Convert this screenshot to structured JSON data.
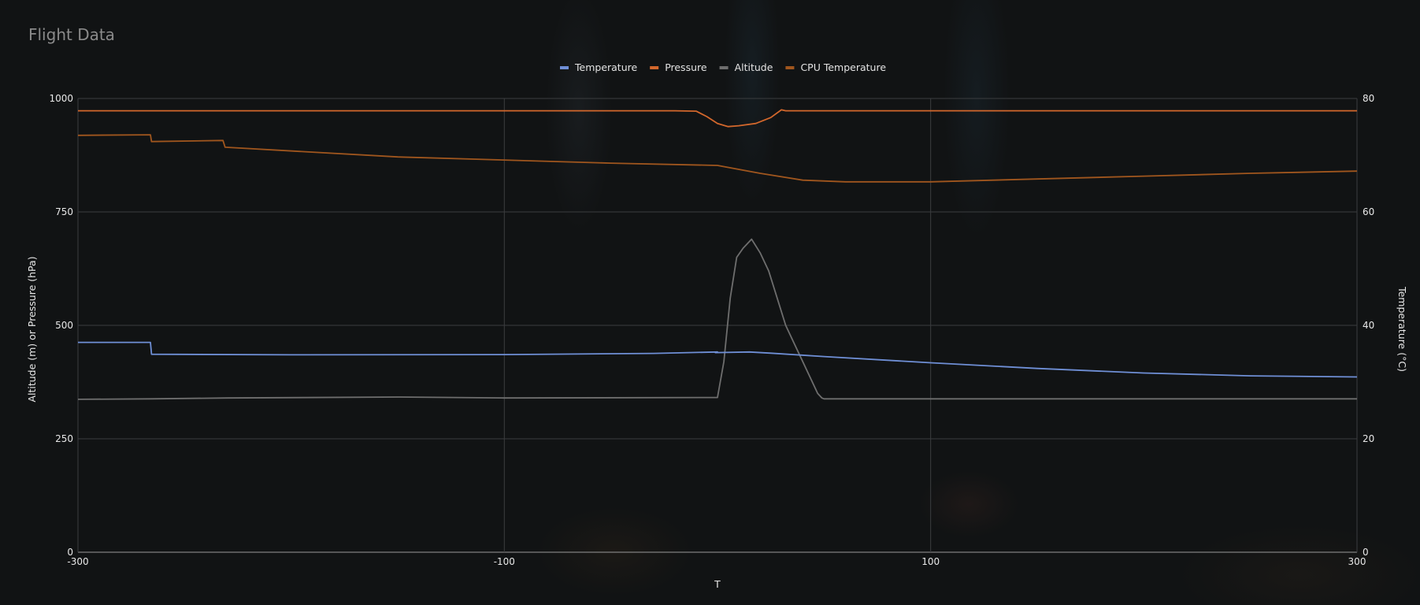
{
  "page": {
    "title": "Flight Data"
  },
  "chart_data": {
    "type": "line",
    "title": "Flight Data",
    "xlabel": "T",
    "ylabel": "Altitude (m) or Pressure (hPa)",
    "y2label": "Temperature (°C)",
    "xlim": [
      -300,
      300
    ],
    "ylim": [
      0,
      1000
    ],
    "y2lim": [
      0,
      80
    ],
    "x_ticks": [
      -300,
      -100,
      100,
      300
    ],
    "y_ticks": [
      0,
      250,
      500,
      750,
      1000
    ],
    "y2_ticks": [
      0,
      20,
      40,
      60,
      80
    ],
    "grid": true,
    "legend_position": "top-center",
    "series": [
      {
        "name": "Temperature",
        "axis": "right",
        "color": "#6f8fd6",
        "points": [
          [
            -300,
            37
          ],
          [
            -266,
            37
          ],
          [
            -265.5,
            34.9
          ],
          [
            -200,
            34.8
          ],
          [
            -100,
            34.85
          ],
          [
            -30,
            35.05
          ],
          [
            0,
            35.3
          ],
          [
            -1,
            35.2
          ],
          [
            15,
            35.3
          ],
          [
            25,
            35.1
          ],
          [
            50,
            34.5
          ],
          [
            100,
            33.4
          ],
          [
            150,
            32.4
          ],
          [
            200,
            31.6
          ],
          [
            250,
            31.1
          ],
          [
            300,
            30.9
          ]
        ]
      },
      {
        "name": "Pressure",
        "axis": "left",
        "color": "#d2672c",
        "points": [
          [
            -300,
            973
          ],
          [
            -20,
            973
          ],
          [
            -10,
            972
          ],
          [
            -5,
            960
          ],
          [
            0,
            945
          ],
          [
            5,
            938
          ],
          [
            10,
            940
          ],
          [
            18,
            945
          ],
          [
            25,
            958
          ],
          [
            30,
            975
          ],
          [
            32,
            973
          ],
          [
            50,
            973
          ],
          [
            150,
            973
          ],
          [
            300,
            973
          ]
        ]
      },
      {
        "name": "Altitude",
        "axis": "left",
        "color": "#6e6e6e",
        "points": [
          [
            -300,
            337
          ],
          [
            -266,
            338
          ],
          [
            -230,
            340
          ],
          [
            -150,
            342
          ],
          [
            -100,
            340
          ],
          [
            0,
            341
          ],
          [
            3,
            420
          ],
          [
            6,
            560
          ],
          [
            9,
            650
          ],
          [
            12,
            670
          ],
          [
            16,
            690
          ],
          [
            20,
            660
          ],
          [
            24,
            620
          ],
          [
            28,
            560
          ],
          [
            32,
            500
          ],
          [
            36,
            460
          ],
          [
            40,
            420
          ],
          [
            44,
            380
          ],
          [
            47,
            350
          ],
          [
            49,
            340
          ],
          [
            50,
            338
          ],
          [
            100,
            338
          ],
          [
            300,
            338
          ]
        ]
      },
      {
        "name": "CPU Temperature",
        "axis": "right",
        "color": "#a0561e",
        "points": [
          [
            -300,
            73.5
          ],
          [
            -266,
            73.6
          ],
          [
            -265.5,
            72.4
          ],
          [
            -232,
            72.6
          ],
          [
            -231,
            71.4
          ],
          [
            -150,
            69.7
          ],
          [
            -50,
            68.6
          ],
          [
            0,
            68.2
          ],
          [
            20,
            66.8
          ],
          [
            40,
            65.6
          ],
          [
            60,
            65.3
          ],
          [
            100,
            65.3
          ],
          [
            150,
            65.8
          ],
          [
            200,
            66.3
          ],
          [
            250,
            66.8
          ],
          [
            300,
            67.2
          ]
        ]
      }
    ]
  }
}
